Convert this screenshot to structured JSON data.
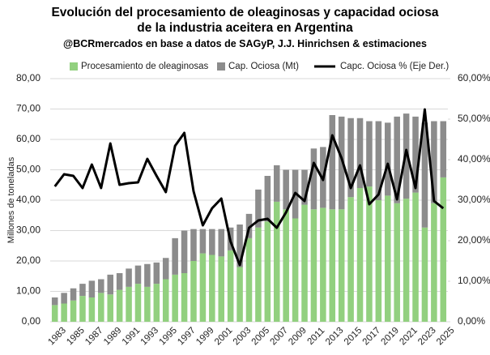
{
  "chart_data": {
    "type": "bar_line",
    "title": "Evolución del procesamiento de oleaginosas y capacidad ociosa de la industria aceitera en Argentina",
    "subtitle": "@BCRmercados  en base a datos de SAGyP, J.J. Hinrichsen  & estimaciones",
    "y_label": "Millones de toneladas",
    "categories": [
      "1983",
      null,
      "1985",
      null,
      "1987",
      null,
      "1989",
      null,
      "1991",
      null,
      "1993",
      null,
      "1995",
      null,
      "1997",
      null,
      "1999",
      null,
      "2001",
      null,
      "2003",
      null,
      "2005",
      null,
      "2007",
      null,
      "2009",
      null,
      "2011",
      null,
      "2013",
      null,
      "2015",
      null,
      "2017",
      null,
      "2019",
      null,
      "2021",
      null,
      "2023",
      null,
      "2025"
    ],
    "series": [
      {
        "name": "Procesamiento de oleaginosas",
        "color": "#92d07f",
        "values": [
          5.5,
          6,
          7,
          8.5,
          8,
          9.5,
          9,
          10.5,
          11.5,
          12.5,
          11.5,
          12.5,
          14,
          15.5,
          16,
          20,
          22.5,
          22,
          21.5,
          23.5,
          18,
          27.5,
          31,
          33,
          39.5,
          37,
          34,
          38.5,
          37,
          37.5,
          37,
          37,
          41,
          44,
          44.5,
          40,
          41.5,
          39,
          40.5,
          42.5,
          31,
          39,
          47.5
        ]
      },
      {
        "name": "Cap. Ociosa (Mt)",
        "color": "#8c8c8c",
        "values": [
          2.5,
          3.5,
          4,
          4,
          5.5,
          4.5,
          6.5,
          5.5,
          6,
          6,
          7.5,
          7,
          7,
          12,
          14,
          10.5,
          8,
          8.5,
          9,
          7.5,
          14,
          8,
          12.5,
          15,
          12,
          13,
          16,
          11.5,
          20,
          20,
          31,
          30.5,
          26,
          23,
          21.5,
          26,
          24,
          28.5,
          28,
          25,
          34.5,
          27,
          18.5
        ]
      },
      {
        "name": "Capc. Ociosa % (Eje Der.)",
        "color": "#000000",
        "axis": "y2",
        "values": [
          33.4,
          36.4,
          36,
          33,
          38.8,
          33,
          44,
          33.8,
          34.2,
          34.4,
          40.2,
          36,
          32,
          43.4,
          46.6,
          32.2,
          23.8,
          28,
          30.4,
          19.8,
          14,
          23.2,
          25,
          25.4,
          23.2,
          27,
          31.8,
          29.8,
          39.2,
          35,
          46,
          40.4,
          33,
          38.6,
          29,
          31.4,
          39,
          30.2,
          42.4,
          33,
          52.4,
          29.8,
          28
        ]
      }
    ],
    "ylim": [
      0,
      80
    ],
    "yticks": [
      {
        "value": 0,
        "label": "0,00"
      },
      {
        "value": 10,
        "label": "10,00"
      },
      {
        "value": 20,
        "label": "20,00"
      },
      {
        "value": 30,
        "label": "30,00"
      },
      {
        "value": 40,
        "label": "40,00"
      },
      {
        "value": 50,
        "label": "50,00"
      },
      {
        "value": 60,
        "label": "60,00"
      },
      {
        "value": 70,
        "label": "70,00"
      },
      {
        "value": 80,
        "label": "80,00"
      }
    ],
    "y2lim": [
      0,
      60
    ],
    "y2ticks": [
      {
        "value": 0,
        "label": "0,00%"
      },
      {
        "value": 10,
        "label": "10,00%"
      },
      {
        "value": 20,
        "label": "20,00%"
      },
      {
        "value": 30,
        "label": "30,00%"
      },
      {
        "value": 40,
        "label": "40,00%"
      },
      {
        "value": 50,
        "label": "50,00%"
      },
      {
        "value": 60,
        "label": "60,00%"
      }
    ],
    "grid": true,
    "legend": "top"
  }
}
